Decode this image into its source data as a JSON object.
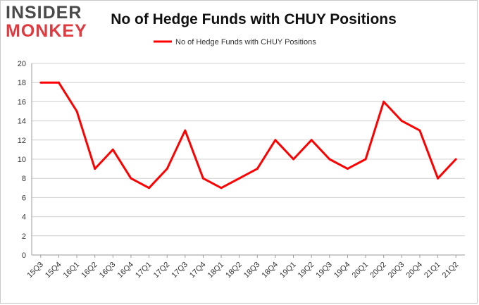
{
  "logo": {
    "top": "INSIDER",
    "bottom": "MONKEY"
  },
  "chart_data": {
    "type": "line",
    "title": "No of Hedge Funds with CHUY Positions",
    "xlabel": "",
    "ylabel": "",
    "categories": [
      "15Q3",
      "15Q4",
      "16Q1",
      "16Q2",
      "16Q3",
      "16Q4",
      "17Q1",
      "17Q2",
      "17Q3",
      "17Q4",
      "18Q1",
      "18Q2",
      "18Q3",
      "18Q4",
      "19Q1",
      "19Q2",
      "19Q3",
      "19Q4",
      "20Q1",
      "20Q2",
      "20Q3",
      "20Q4",
      "21Q1",
      "21Q2"
    ],
    "series": [
      {
        "name": "No of Hedge Funds with CHUY Positions",
        "color": "#ff0000",
        "values": [
          18,
          18,
          15,
          9,
          11,
          8,
          7,
          9,
          13,
          8,
          7,
          8,
          9,
          12,
          10,
          12,
          10,
          9,
          10,
          16,
          14,
          13,
          8,
          10
        ]
      }
    ],
    "ylim": [
      0,
      20
    ],
    "yticks": [
      0,
      2,
      4,
      6,
      8,
      10,
      12,
      14,
      16,
      18,
      20
    ],
    "grid": true,
    "legend_position": "top"
  }
}
